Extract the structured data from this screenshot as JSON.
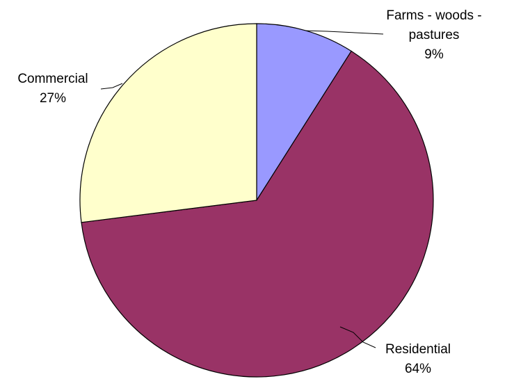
{
  "chart_data": {
    "type": "pie",
    "title": "",
    "categories": [
      "Farms - woods - pastures",
      "Residential",
      "Commercial"
    ],
    "values": [
      9,
      64,
      27
    ],
    "value_labels": [
      "9%",
      "64%",
      "27%"
    ],
    "label_lines": [
      [
        "Farms - woods -",
        "pastures",
        "9%"
      ],
      [
        "Residential",
        "64%"
      ],
      [
        "Commercial",
        "27%"
      ]
    ],
    "colors": [
      "#9999FF",
      "#993366",
      "#FFFFCC"
    ],
    "start": "12 o'clock",
    "direction": "clockwise",
    "legend": "none",
    "data_labels": "outside with leader lines"
  }
}
